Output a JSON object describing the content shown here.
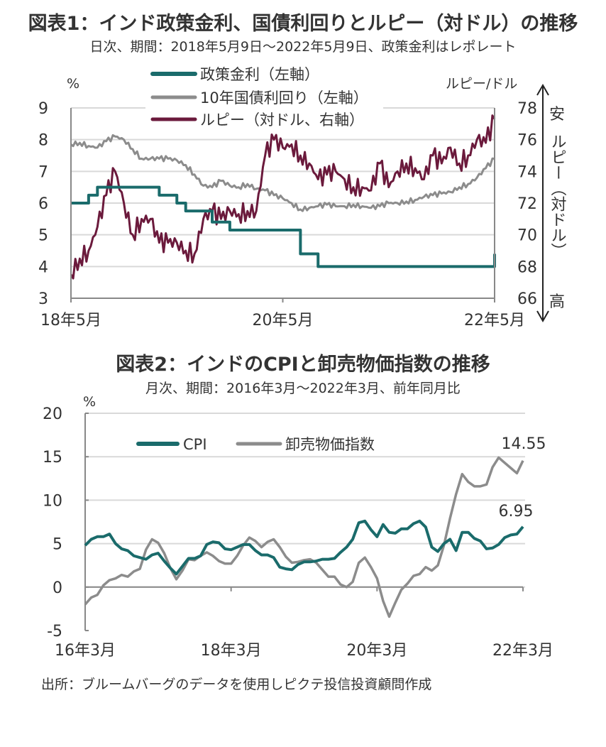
{
  "chart_data": [
    {
      "type": "line",
      "title": "図表1：インド政策金利、国債利回りとルピー（対ドル）の推移",
      "subtitle": "日次、期間：2018年5月9日～2022年5月9日、政策金利はレポレート",
      "left_unit": "%",
      "right_unit": "ルピー/ドル",
      "right_axis_label": {
        "top": "安",
        "middle": "ルピー（対ドル）",
        "bottom": "高"
      },
      "x_ticks": [
        "18年5月",
        "20年5月",
        "22年5月"
      ],
      "ylim_left": [
        3,
        9
      ],
      "yticks_left": [
        "3",
        "4",
        "5",
        "6",
        "7",
        "8",
        "9"
      ],
      "ylim_right": [
        66,
        78
      ],
      "yticks_right": [
        "66",
        "68",
        "70",
        "72",
        "74",
        "76",
        "78"
      ],
      "x_months_from_may2018": [
        0,
        1,
        2,
        3,
        4,
        5,
        6,
        7,
        8,
        9,
        10,
        11,
        12,
        13,
        14,
        15,
        16,
        17,
        18,
        19,
        20,
        21,
        22,
        23,
        24,
        25,
        26,
        27,
        28,
        29,
        30,
        31,
        32,
        33,
        34,
        35,
        36,
        37,
        38,
        39,
        40,
        41,
        42,
        43,
        44,
        45,
        46,
        47,
        48
      ],
      "series": [
        {
          "name": "政策金利（左軸）",
          "axis": "left",
          "color": "#1a6b6b",
          "values": [
            6.0,
            6.0,
            6.25,
            6.5,
            6.5,
            6.5,
            6.5,
            6.5,
            6.5,
            6.5,
            6.25,
            6.25,
            6.0,
            5.75,
            5.75,
            5.75,
            5.4,
            5.4,
            5.15,
            5.15,
            5.15,
            5.15,
            5.15,
            5.15,
            5.15,
            5.15,
            4.4,
            4.4,
            4.0,
            4.0,
            4.0,
            4.0,
            4.0,
            4.0,
            4.0,
            4.0,
            4.0,
            4.0,
            4.0,
            4.0,
            4.0,
            4.0,
            4.0,
            4.0,
            4.0,
            4.0,
            4.0,
            4.0,
            4.4
          ]
        },
        {
          "name": "10年国債利回り（左軸）",
          "axis": "left",
          "color": "#8c8c8c",
          "values": [
            7.85,
            7.9,
            7.8,
            7.75,
            7.95,
            8.1,
            8.0,
            7.7,
            7.4,
            7.4,
            7.4,
            7.4,
            7.35,
            7.2,
            6.9,
            6.55,
            6.5,
            6.7,
            6.55,
            6.5,
            6.6,
            6.45,
            6.4,
            6.25,
            6.15,
            6.0,
            5.8,
            5.85,
            5.9,
            5.95,
            5.9,
            5.9,
            5.95,
            5.9,
            5.85,
            5.9,
            6.0,
            6.0,
            6.05,
            6.1,
            6.2,
            6.25,
            6.3,
            6.35,
            6.5,
            6.6,
            6.8,
            7.1,
            7.4
          ]
        },
        {
          "name": "ルピー（対ドル、右軸）",
          "axis": "right",
          "color": "#6b1a3c",
          "values": [
            67.5,
            68.5,
            69.0,
            70.5,
            72.5,
            74.0,
            72.0,
            70.0,
            71.0,
            71.0,
            69.5,
            69.5,
            69.5,
            69.0,
            68.8,
            71.0,
            71.5,
            71.0,
            71.5,
            71.3,
            71.5,
            71.5,
            75.0,
            76.0,
            75.5,
            75.7,
            75.0,
            74.5,
            73.5,
            73.8,
            74.0,
            73.5,
            73.0,
            73.0,
            72.8,
            74.5,
            73.0,
            74.0,
            74.5,
            74.2,
            73.5,
            75.0,
            74.5,
            75.5,
            74.5,
            75.0,
            76.0,
            75.8,
            77.3
          ]
        }
      ]
    },
    {
      "type": "line",
      "title": "図表2：インドのCPIと卸売物価指数の推移",
      "subtitle": "月次、期間：2016年3月～2022年3月、前年同月比",
      "y_unit": "%",
      "ylim": [
        -5,
        20
      ],
      "yticks": [
        "-5",
        "0",
        "5",
        "10",
        "15",
        "20"
      ],
      "x_ticks": [
        "16年3月",
        "18年3月",
        "20年3月",
        "22年3月"
      ],
      "series": [
        {
          "name": "CPI",
          "color": "#1a6b6b",
          "last_label": "6.95",
          "values": [
            4.8,
            5.5,
            5.8,
            5.8,
            6.1,
            5.0,
            4.4,
            4.2,
            3.6,
            3.4,
            3.2,
            3.7,
            3.9,
            3.0,
            2.2,
            1.5,
            2.4,
            3.3,
            3.3,
            3.6,
            4.9,
            5.2,
            5.1,
            4.4,
            4.3,
            4.6,
            4.9,
            4.9,
            4.2,
            3.7,
            3.7,
            3.4,
            2.3,
            2.1,
            2.0,
            2.6,
            2.9,
            2.9,
            3.0,
            3.2,
            3.2,
            3.3,
            4.0,
            4.6,
            5.5,
            7.4,
            7.6,
            6.6,
            5.8,
            7.2,
            6.3,
            6.2,
            6.7,
            6.7,
            7.3,
            7.6,
            6.9,
            4.6,
            4.1,
            5.0,
            5.5,
            4.2,
            6.3,
            6.3,
            5.6,
            5.3,
            4.4,
            4.5,
            4.9,
            5.7,
            6.0,
            6.1,
            6.95
          ]
        },
        {
          "name": "卸売物価指数",
          "color": "#8c8c8c",
          "last_label": "14.55",
          "values": [
            -2.0,
            -1.2,
            -0.9,
            0.2,
            0.8,
            1.0,
            1.4,
            1.2,
            1.8,
            2.1,
            4.3,
            5.5,
            5.1,
            3.9,
            2.2,
            0.9,
            1.9,
            3.2,
            3.1,
            3.6,
            4.0,
            3.6,
            3.0,
            2.7,
            2.7,
            3.6,
            4.8,
            5.7,
            5.3,
            4.6,
            5.2,
            5.5,
            4.6,
            3.5,
            2.8,
            2.9,
            3.1,
            3.2,
            2.8,
            2.0,
            1.2,
            1.2,
            0.3,
            0.0,
            0.6,
            2.8,
            3.4,
            2.3,
            1.0,
            -1.6,
            -3.4,
            -1.8,
            -0.3,
            0.4,
            1.3,
            1.5,
            2.3,
            1.9,
            2.5,
            4.8,
            7.9,
            10.7,
            13.0,
            12.1,
            11.6,
            11.6,
            11.8,
            13.8,
            14.9,
            14.3,
            13.7,
            13.1,
            14.55
          ]
        }
      ]
    }
  ],
  "source": "出所：ブルームバーグのデータを使用しピクテ投信投資顧問作成"
}
